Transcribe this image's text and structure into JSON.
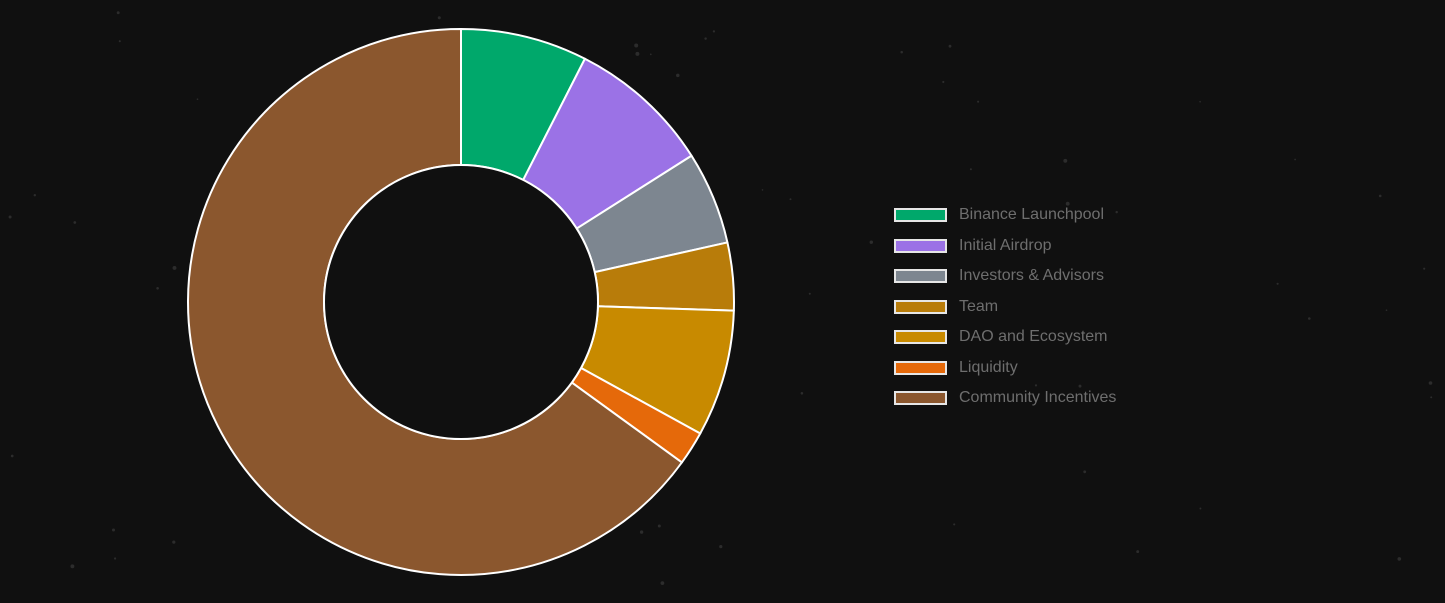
{
  "chart_data": {
    "type": "pie",
    "style": "donut",
    "title": "",
    "legend_position": "right",
    "categories": [
      "Binance Launchpool",
      "Initial Airdrop",
      "Investors & Advisors",
      "Team",
      "DAO and Ecosystem",
      "Liquidity",
      "Community Incentives"
    ],
    "values": [
      7.5,
      8.5,
      5.5,
      4.0,
      7.5,
      2.0,
      65.0
    ],
    "colors": [
      "#00a86b",
      "#9b72e6",
      "#7d8690",
      "#b87c0a",
      "#c88a00",
      "#e5690a",
      "#8b572e"
    ],
    "slice_border_color": "#ffffff"
  }
}
